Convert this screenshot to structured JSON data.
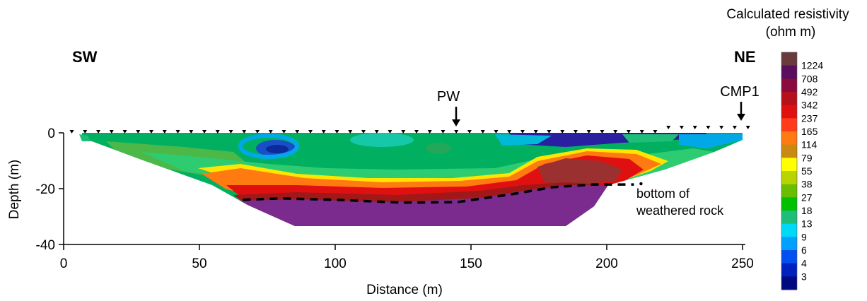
{
  "chart_data": {
    "type": "heatmap",
    "title": "",
    "xlabel": "Distance (m)",
    "ylabel": "Depth (m)",
    "xlim": [
      0,
      250
    ],
    "ylim": [
      -40,
      0
    ],
    "xticks": [
      0,
      50,
      100,
      150,
      200,
      250
    ],
    "yticks": [
      0,
      -20,
      -40
    ],
    "grid": false,
    "colorbar": {
      "title_line1": "Calculated resistivity",
      "title_line2": "(ohm m)",
      "position": "right",
      "levels": [
        "1224",
        "708",
        "492",
        "342",
        "237",
        "165",
        "114",
        "79",
        "55",
        "38",
        "27",
        "18",
        "13",
        "9",
        "6",
        "4",
        "3"
      ],
      "colors": [
        "#6b3a3a",
        "#5a0f5e",
        "#8b0b3e",
        "#b5101c",
        "#e01010",
        "#ff3b1a",
        "#ff7a10",
        "#c88a10",
        "#ffff00",
        "#b8d400",
        "#6bbd00",
        "#00c000",
        "#1ebe78",
        "#00d8f8",
        "#00a0ff",
        "#0050f0",
        "#0020c0",
        "#000a80"
      ]
    },
    "direction_labels": {
      "left": "SW",
      "right": "NE"
    },
    "markers": [
      {
        "label": "PW",
        "x": 145
      },
      {
        "label": "CMP1",
        "x": 250
      }
    ],
    "electrodes_x_range": [
      3,
      252
    ],
    "annotation": {
      "line1": "bottom of",
      "line2": "weathered rock"
    },
    "weathered_rock_boundary": [
      {
        "x": 66,
        "y": -24
      },
      {
        "x": 80,
        "y": -23.5
      },
      {
        "x": 100,
        "y": -24
      },
      {
        "x": 125,
        "y": -25
      },
      {
        "x": 145,
        "y": -24.8
      },
      {
        "x": 165,
        "y": -22
      },
      {
        "x": 180,
        "y": -19.5
      },
      {
        "x": 195,
        "y": -18.5
      },
      {
        "x": 210,
        "y": -18.5
      }
    ]
  }
}
